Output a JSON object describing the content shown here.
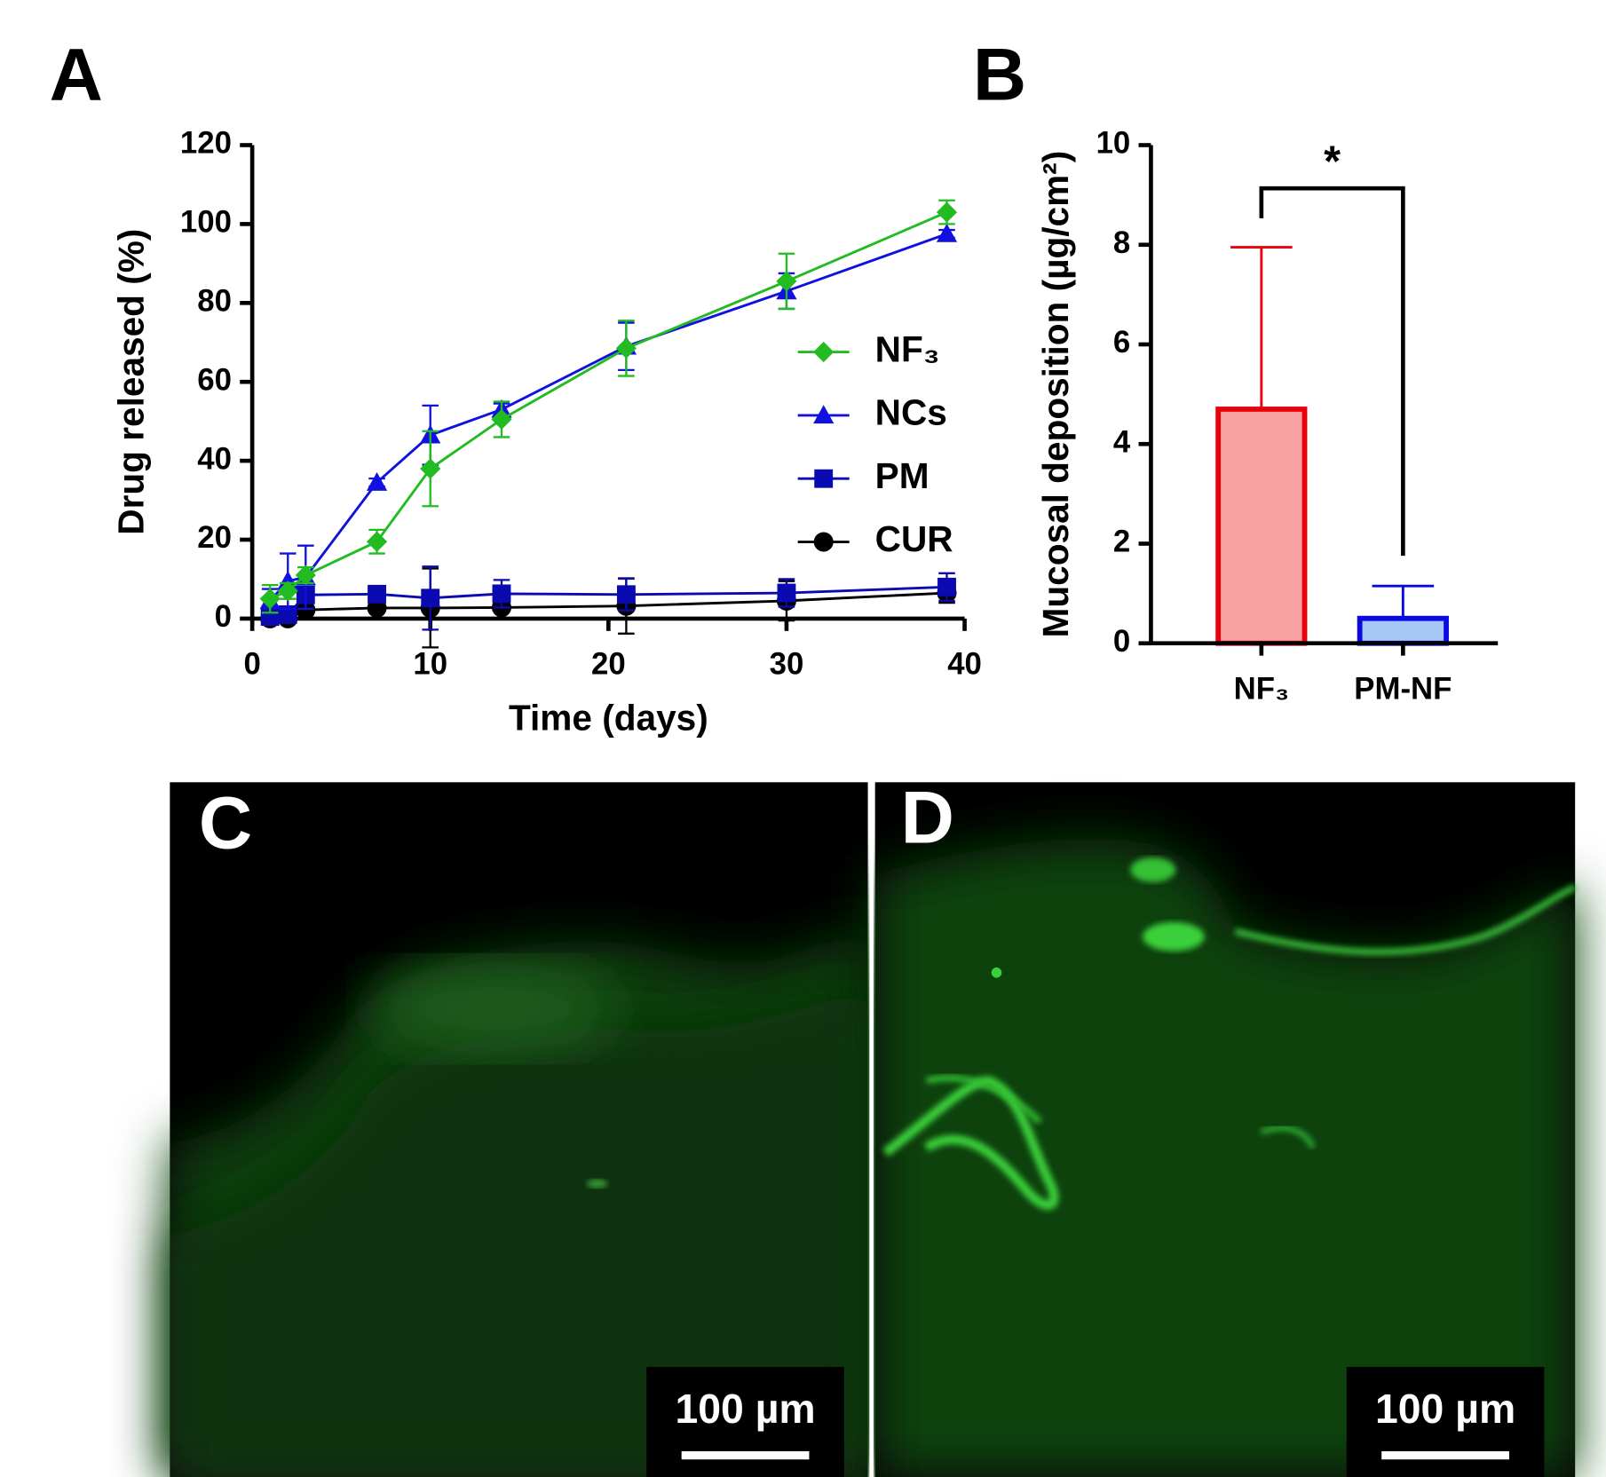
{
  "panels": [
    "A",
    "B",
    "C",
    "D"
  ],
  "chart_data": [
    {
      "type": "line",
      "x_label": "Time (days)",
      "y_label": "Drug released (%)",
      "x": [
        1,
        2,
        3,
        7,
        10,
        14,
        21,
        30,
        39
      ],
      "xlim": [
        0,
        40
      ],
      "xticks": [
        0,
        10,
        20,
        30,
        40
      ],
      "ylim": [
        0,
        120
      ],
      "yticks": [
        0,
        20,
        40,
        60,
        80,
        100,
        120
      ],
      "legend": "right",
      "series": [
        {
          "name": "NF₃",
          "color": "#22bb22",
          "marker": "diamond",
          "values": [
            5,
            7,
            11,
            19.5,
            38,
            50.5,
            68.5,
            85.5,
            103
          ],
          "errors": [
            3.5,
            2,
            2,
            3,
            9.5,
            4.5,
            7,
            7,
            3
          ]
        },
        {
          "name": "NCs",
          "color": "#1010e0",
          "marker": "triangle",
          "values": [
            4.5,
            9.5,
            10.5,
            34.5,
            46.5,
            53,
            69,
            83,
            97.5
          ],
          "errors": [
            3,
            7,
            8,
            1,
            7.5,
            1.5,
            6,
            4.5,
            1
          ]
        },
        {
          "name": "PM",
          "color": "#0a0ab0",
          "marker": "square",
          "values": [
            0.5,
            1,
            6,
            6.2,
            5.2,
            6.3,
            6.1,
            6.5,
            8
          ],
          "errors": [
            2,
            2,
            2,
            1.5,
            8,
            3.5,
            4,
            3.5,
            3.5
          ]
        },
        {
          "name": "CUR",
          "color": "#000000",
          "marker": "circle",
          "values": [
            0,
            0,
            2.2,
            2.7,
            2.7,
            2.8,
            3.2,
            4.5,
            6.5
          ],
          "errors": [
            1,
            1,
            1,
            1,
            10,
            1,
            7,
            5,
            2.5
          ]
        }
      ]
    },
    {
      "type": "bar",
      "y_label": "Mucosal deposition (µg/cm²)",
      "categories": [
        "NF₃",
        "PM-NF"
      ],
      "values": [
        4.7,
        0.5
      ],
      "errors": [
        3.25,
        0.65
      ],
      "colors": [
        "#f9a0a0",
        "#a6c8f6"
      ],
      "edge_colors": [
        "#e8000b",
        "#0a0ae0"
      ],
      "ylim": [
        0,
        10
      ],
      "yticks": [
        0,
        2,
        4,
        6,
        8,
        10
      ],
      "annotation": "*"
    }
  ],
  "micrographs": [
    {
      "scale_label": "100 µm"
    },
    {
      "scale_label": "100 µm"
    }
  ]
}
